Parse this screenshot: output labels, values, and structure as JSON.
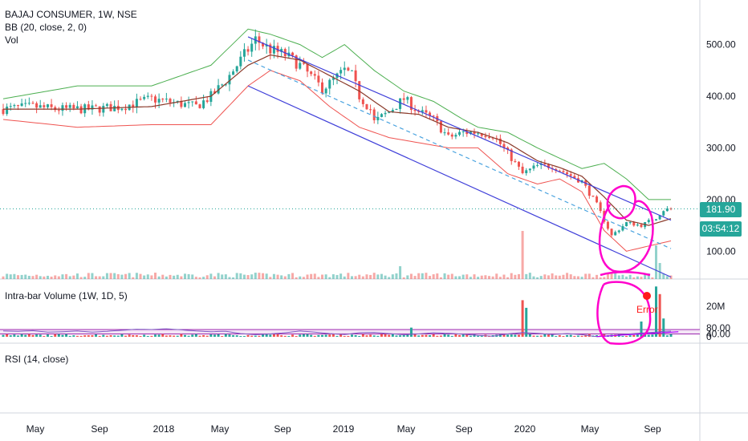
{
  "legends": {
    "symbol": "BAJAJ CONSUMER, 1W, NSE",
    "bb": "BB (20, close, 2, 0)",
    "vol": "Vol",
    "intrabar": "Intra-bar Volume (1W, 1D, 5)",
    "rsi": "RSI (14, close)"
  },
  "price_badges": {
    "last": "181.90",
    "countdown": "03:54:12"
  },
  "annotation": {
    "error_label": "Error"
  },
  "colors": {
    "up": "#26a69a",
    "down": "#ef5350",
    "bb_mid": "#8b3a2a",
    "bb_upper": "#4caf50",
    "bb_lower": "#ef5350",
    "channel": "#3f3fd9",
    "rsi": "#7e57c2",
    "rsi_band": "#f3e5f5",
    "marker": "#ff00cc",
    "last_price": "#26a69a",
    "countdown": "#26a69a"
  },
  "chart_data": [
    {
      "type": "candlestick",
      "title": "BAJAJ CONSUMER, 1W, NSE",
      "y_ticks": [
        500,
        400,
        300,
        200,
        100
      ],
      "y_tick_labels": [
        "500.00",
        "400.00",
        "300.00",
        "200.00",
        "100.00"
      ],
      "ylim": [
        40,
        600
      ],
      "x_ticks": [
        "May",
        "Sep",
        "2018",
        "May",
        "Sep",
        "2019",
        "May",
        "Sep",
        "2020",
        "May",
        "Sep"
      ],
      "last_price": 181.9,
      "close_path": [
        [
          0,
          375
        ],
        [
          8,
          380
        ],
        [
          14,
          375
        ],
        [
          24,
          375
        ],
        [
          32,
          380
        ],
        [
          40,
          395
        ],
        [
          52,
          380
        ],
        [
          56,
          400
        ],
        [
          60,
          430
        ],
        [
          64,
          470
        ],
        [
          66,
          490
        ],
        [
          68,
          510
        ],
        [
          72,
          490
        ],
        [
          76,
          480
        ],
        [
          80,
          460
        ],
        [
          84,
          430
        ],
        [
          86,
          415
        ],
        [
          88,
          425
        ],
        [
          92,
          450
        ],
        [
          94,
          440
        ],
        [
          96,
          400
        ],
        [
          99,
          375
        ],
        [
          100,
          350
        ],
        [
          104,
          370
        ],
        [
          108,
          395
        ],
        [
          112,
          370
        ],
        [
          116,
          355
        ],
        [
          120,
          320
        ],
        [
          124,
          330
        ],
        [
          128,
          330
        ],
        [
          132,
          325
        ],
        [
          136,
          290
        ],
        [
          140,
          250
        ],
        [
          144,
          265
        ],
        [
          148,
          265
        ],
        [
          152,
          250
        ],
        [
          156,
          235
        ],
        [
          160,
          190
        ],
        [
          162,
          160
        ],
        [
          164,
          130
        ],
        [
          168,
          155
        ],
        [
          172,
          150
        ],
        [
          176,
          165
        ],
        [
          178,
          180
        ],
        [
          180,
          182
        ]
      ],
      "bb_mid_path": [
        [
          0,
          375
        ],
        [
          20,
          375
        ],
        [
          40,
          380
        ],
        [
          56,
          400
        ],
        [
          66,
          460
        ],
        [
          72,
          480
        ],
        [
          80,
          470
        ],
        [
          88,
          440
        ],
        [
          96,
          410
        ],
        [
          104,
          370
        ],
        [
          112,
          365
        ],
        [
          120,
          340
        ],
        [
          128,
          330
        ],
        [
          136,
          310
        ],
        [
          144,
          275
        ],
        [
          150,
          262
        ],
        [
          156,
          245
        ],
        [
          162,
          205
        ],
        [
          168,
          160
        ],
        [
          174,
          150
        ],
        [
          180,
          163
        ]
      ],
      "bb_upper_path": [
        [
          0,
          395
        ],
        [
          20,
          420
        ],
        [
          40,
          420
        ],
        [
          56,
          460
        ],
        [
          66,
          530
        ],
        [
          72,
          520
        ],
        [
          80,
          500
        ],
        [
          86,
          475
        ],
        [
          92,
          500
        ],
        [
          100,
          450
        ],
        [
          108,
          410
        ],
        [
          116,
          390
        ],
        [
          124,
          355
        ],
        [
          128,
          340
        ],
        [
          136,
          330
        ],
        [
          144,
          300
        ],
        [
          150,
          280
        ],
        [
          156,
          260
        ],
        [
          162,
          270
        ],
        [
          168,
          240
        ],
        [
          174,
          200
        ],
        [
          180,
          200
        ]
      ],
      "bb_lower_path": [
        [
          0,
          355
        ],
        [
          20,
          340
        ],
        [
          40,
          345
        ],
        [
          56,
          345
        ],
        [
          66,
          420
        ],
        [
          72,
          450
        ],
        [
          80,
          430
        ],
        [
          88,
          380
        ],
        [
          96,
          340
        ],
        [
          104,
          320
        ],
        [
          112,
          310
        ],
        [
          120,
          300
        ],
        [
          128,
          300
        ],
        [
          136,
          250
        ],
        [
          144,
          230
        ],
        [
          150,
          240
        ],
        [
          156,
          215
        ],
        [
          162,
          140
        ],
        [
          168,
          100
        ],
        [
          174,
          110
        ],
        [
          180,
          120
        ]
      ],
      "channel_lines": [
        {
          "from": [
            66,
            515
          ],
          "to": [
            180,
            160
          ],
          "style": "solid"
        },
        {
          "from": [
            66,
            420
          ],
          "to": [
            180,
            50
          ],
          "style": "solid"
        },
        {
          "from": [
            66,
            470
          ],
          "to": [
            180,
            105
          ],
          "style": "dashed"
        }
      ]
    },
    {
      "type": "bar",
      "title": "Intra-bar Volume (1W, 1D, 5)",
      "y_ticks": [
        20000000,
        0
      ],
      "y_tick_labels": [
        "20M",
        "0"
      ],
      "spikes": [
        {
          "x": 110,
          "value": 6000000,
          "color": "up"
        },
        {
          "x": 140,
          "value": 24000000,
          "color": "down"
        },
        {
          "x": 141,
          "value": 19000000,
          "color": "up"
        },
        {
          "x": 172,
          "value": 10000000,
          "color": "up"
        },
        {
          "x": 176,
          "value": 33000000,
          "color": "up"
        },
        {
          "x": 177,
          "value": 28000000,
          "color": "down"
        },
        {
          "x": 178,
          "value": 12000000,
          "color": "up"
        }
      ]
    },
    {
      "type": "line",
      "title": "RSI (14, close)",
      "y_ticks": [
        80,
        40
      ],
      "y_tick_labels": [
        "80.00",
        "40.00"
      ],
      "band": [
        40,
        70
      ],
      "ylim": [
        10,
        80
      ],
      "rsi_path": [
        [
          0,
          60
        ],
        [
          4,
          58
        ],
        [
          8,
          62
        ],
        [
          12,
          52
        ],
        [
          16,
          55
        ],
        [
          20,
          60
        ],
        [
          24,
          52
        ],
        [
          28,
          58
        ],
        [
          32,
          65
        ],
        [
          36,
          72
        ],
        [
          40,
          70
        ],
        [
          44,
          75
        ],
        [
          48,
          68
        ],
        [
          52,
          60
        ],
        [
          56,
          55
        ],
        [
          60,
          58
        ],
        [
          64,
          42
        ],
        [
          68,
          35
        ],
        [
          72,
          40
        ],
        [
          76,
          48
        ],
        [
          80,
          60
        ],
        [
          84,
          52
        ],
        [
          88,
          42
        ],
        [
          92,
          36
        ],
        [
          96,
          48
        ],
        [
          100,
          50
        ],
        [
          104,
          42
        ],
        [
          108,
          35
        ],
        [
          112,
          40
        ],
        [
          116,
          48
        ],
        [
          120,
          44
        ],
        [
          124,
          38
        ],
        [
          128,
          30
        ],
        [
          132,
          25
        ],
        [
          136,
          40
        ],
        [
          140,
          50
        ],
        [
          144,
          44
        ],
        [
          148,
          36
        ],
        [
          152,
          42
        ],
        [
          156,
          35
        ],
        [
          160,
          22
        ],
        [
          164,
          28
        ],
        [
          168,
          38
        ],
        [
          172,
          46
        ],
        [
          176,
          52
        ],
        [
          178,
          58
        ],
        [
          180,
          59
        ]
      ],
      "trendline": {
        "from": [
          160,
          22
        ],
        "to": [
          182,
          55
        ]
      }
    }
  ]
}
